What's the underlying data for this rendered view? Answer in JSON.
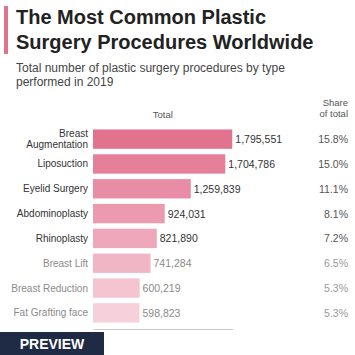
{
  "chart_data": {
    "type": "bar",
    "orientation": "horizontal",
    "title": "The Most Common Plastic Surgery Procedures Worldwide",
    "subtitle": "Total number of plastic surgery procedures by type performed in 2019",
    "categories": [
      "Breast Augmentation",
      "Liposuction",
      "Eyelid Surgery",
      "Abdominoplasty",
      "Rhinoplasty",
      "Breast Lift",
      "Breast Reduction",
      "Fat Grafting face"
    ],
    "values": [
      1795551,
      1704786,
      1259839,
      924031,
      821890,
      741284,
      600219,
      598823
    ],
    "value_labels": [
      "1,795,551",
      "1,704,786",
      "1,259,839",
      "924,031",
      "821,890",
      "741,284",
      "600,219",
      "598,823"
    ],
    "colors": [
      "#e2738f",
      "#e57f9a",
      "#e98ca5",
      "#ec9ab0",
      "#efa8bb",
      "#f1b6c6",
      "#f4c4d1",
      "#f6d1db"
    ],
    "data_labels": true,
    "tick_labels": false,
    "xlim": [
      0,
      1800000
    ],
    "xticks": [],
    "value_header": "Total",
    "share_header": [
      "Share",
      "of total"
    ],
    "share_labels": [
      "15.8%",
      "15.0%",
      "11.1%",
      "8.1%",
      "7.2%",
      "6.5%",
      "5.3%",
      "5.3%"
    ]
  },
  "watermark": "PREVIEW"
}
